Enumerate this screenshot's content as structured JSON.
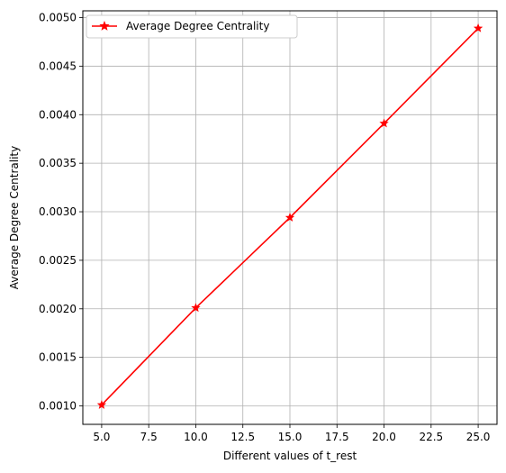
{
  "chart_data": {
    "type": "line",
    "title": "",
    "xlabel": "Different values of t_rest",
    "ylabel": "Average Degree Centrality",
    "xlim": [
      4,
      26
    ],
    "ylim": [
      0.00081,
      0.00507
    ],
    "grid": true,
    "legend_position": "top-left",
    "x_ticks": [
      5.0,
      7.5,
      10.0,
      12.5,
      15.0,
      17.5,
      20.0,
      22.5,
      25.0
    ],
    "x_tick_labels": [
      "5.0",
      "7.5",
      "10.0",
      "12.5",
      "15.0",
      "17.5",
      "20.0",
      "22.5",
      "25.0"
    ],
    "y_ticks": [
      0.001,
      0.0015,
      0.002,
      0.0025,
      0.003,
      0.0035,
      0.004,
      0.0045,
      0.005
    ],
    "y_tick_labels": [
      "0.0010",
      "0.0015",
      "0.0020",
      "0.0025",
      "0.0030",
      "0.0035",
      "0.0040",
      "0.0045",
      "0.0050"
    ],
    "series": [
      {
        "name": "Average Degree Centrality",
        "color": "#ff0000",
        "marker": "star",
        "x": [
          5,
          10,
          15,
          20,
          25
        ],
        "y": [
          0.00101,
          0.00201,
          0.00294,
          0.00391,
          0.00489
        ]
      }
    ]
  }
}
